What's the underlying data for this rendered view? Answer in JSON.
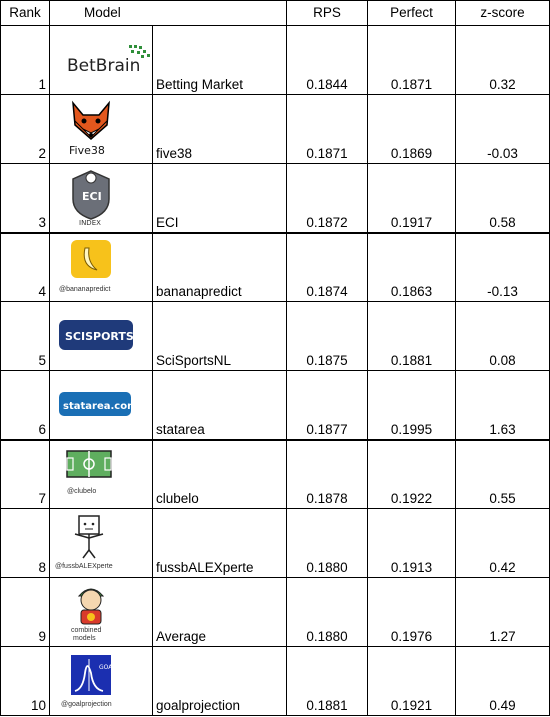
{
  "columns": {
    "rank": "Rank",
    "model": "Model",
    "rps": "RPS",
    "perfect": "Perfect",
    "zscore": "z-score"
  },
  "rows": [
    {
      "rank": "1",
      "logo_icon": "betbrain-logo",
      "logo_text": "BetBrain",
      "name": "Betting Market",
      "rps": "0.1844",
      "perfect": "0.1871",
      "z": "0.32"
    },
    {
      "rank": "2",
      "logo_icon": "fox-logo",
      "logo_text": "Five38",
      "name": "five38",
      "rps": "0.1871",
      "perfect": "0.1869",
      "z": "-0.03"
    },
    {
      "rank": "3",
      "logo_icon": "shield-ball-logo",
      "logo_text": "ECI",
      "logo_subtext": "INDEX",
      "name": "ECI",
      "rps": "0.1872",
      "perfect": "0.1917",
      "z": "0.58"
    },
    {
      "rank": "4",
      "logo_icon": "banana-logo",
      "logo_text": "@bananapredict",
      "name": "bananapredict",
      "rps": "0.1874",
      "perfect": "0.1863",
      "z": "-0.13"
    },
    {
      "rank": "5",
      "logo_icon": "scisports-logo",
      "logo_text": "SCISPORTS",
      "name": "SciSportsNL",
      "rps": "0.1875",
      "perfect": "0.1881",
      "z": "0.08"
    },
    {
      "rank": "6",
      "logo_icon": "statarea-logo",
      "logo_text": "statarea.com",
      "name": "statarea",
      "rps": "0.1877",
      "perfect": "0.1995",
      "z": "1.63"
    },
    {
      "rank": "7",
      "logo_icon": "pitch-logo",
      "logo_text": "@clubelo",
      "name": "clubelo",
      "rps": "0.1878",
      "perfect": "0.1922",
      "z": "0.55"
    },
    {
      "rank": "8",
      "logo_icon": "stick-figure-logo",
      "logo_text": "@fussbALEXperte",
      "name": "fussbALEXperte",
      "rps": "0.1880",
      "perfect": "0.1913",
      "z": "0.42"
    },
    {
      "rank": "9",
      "logo_icon": "combined-figure-logo",
      "logo_text": "combined",
      "logo_subtext": "models",
      "name": "Average",
      "rps": "0.1880",
      "perfect": "0.1976",
      "z": "1.27"
    },
    {
      "rank": "10",
      "logo_icon": "goal-curve-logo",
      "logo_text": "GOAL",
      "logo_subtext": "@goalprojection",
      "name": "goalprojection",
      "rps": "0.1881",
      "perfect": "0.1921",
      "z": "0.49"
    }
  ],
  "colors": {
    "banana_bg": "#f7c21b",
    "scisports_bg": "#1f3a7a",
    "statarea_bg": "#1a6fb5",
    "goal_blue": "#1b2fb0",
    "fox_orange": "#e2571d",
    "green": "#3d8b3d"
  }
}
